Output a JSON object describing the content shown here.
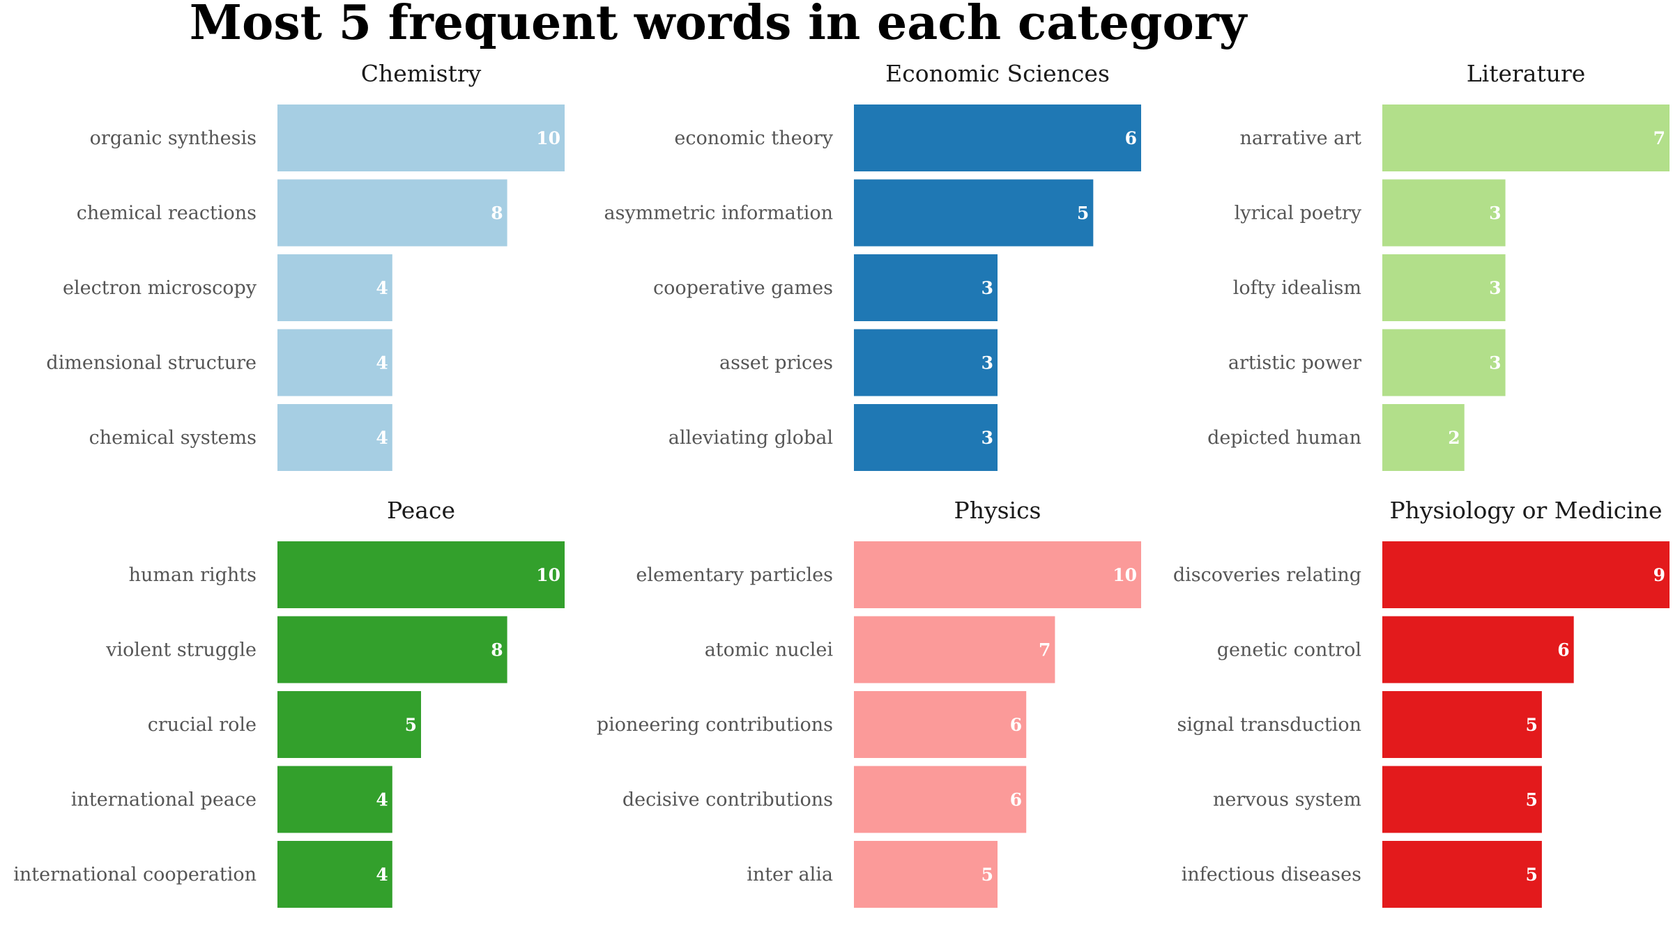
{
  "chart_data": {
    "type": "bar",
    "title": "Most 5 frequent words in each category",
    "orientation": "horizontal",
    "grid": false,
    "legend": "none",
    "panels": [
      {
        "name": "Chemistry",
        "color": "#a6cee3",
        "categories": [
          "organic synthesis",
          "chemical reactions",
          "electron microscopy",
          "dimensional structure",
          "chemical systems"
        ],
        "values": [
          10,
          8,
          4,
          4,
          4
        ]
      },
      {
        "name": "Economic Sciences",
        "color": "#1f78b4",
        "categories": [
          "economic theory",
          "asymmetric information",
          "cooperative games",
          "asset prices",
          "alleviating global"
        ],
        "values": [
          6,
          5,
          3,
          3,
          3
        ]
      },
      {
        "name": "Literature",
        "color": "#b2df8a",
        "categories": [
          "narrative art",
          "lyrical poetry",
          "lofty idealism",
          "artistic power",
          "depicted human"
        ],
        "values": [
          7,
          3,
          3,
          3,
          2
        ]
      },
      {
        "name": "Peace",
        "color": "#33a02c",
        "categories": [
          "human rights",
          "violent struggle",
          "crucial role",
          "international peace",
          "international cooperation"
        ],
        "values": [
          10,
          8,
          5,
          4,
          4
        ]
      },
      {
        "name": "Physics",
        "color": "#fb9a99",
        "categories": [
          "elementary particles",
          "atomic nuclei",
          "pioneering contributions",
          "decisive contributions",
          "inter alia"
        ],
        "values": [
          10,
          7,
          6,
          6,
          5
        ]
      },
      {
        "name": "Physiology or Medicine",
        "color": "#e31a1c",
        "categories": [
          "discoveries relating",
          "genetic control",
          "signal transduction",
          "nervous system",
          "infectious diseases"
        ],
        "values": [
          9,
          6,
          5,
          5,
          5
        ]
      }
    ]
  }
}
